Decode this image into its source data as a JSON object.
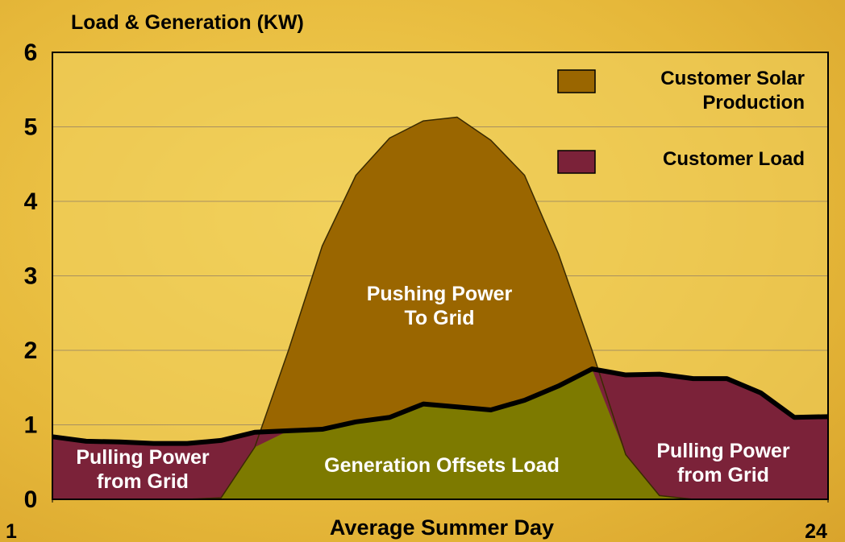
{
  "chart_data": {
    "type": "area",
    "title": "Load & Generation (KW)",
    "x_label": "Average Summer Day",
    "x": [
      1,
      2,
      3,
      4,
      5,
      6,
      7,
      8,
      9,
      10,
      11,
      12,
      13,
      14,
      15,
      16,
      17,
      18,
      19,
      20,
      21,
      22,
      23,
      24
    ],
    "series": [
      {
        "name": "Customer Solar Production",
        "color": "#9a6600",
        "values": [
          0,
          0,
          0,
          0,
          0,
          0.02,
          0.7,
          2.0,
          3.4,
          4.35,
          4.85,
          5.08,
          5.13,
          4.82,
          4.35,
          3.3,
          2.0,
          0.6,
          0.05,
          0,
          0,
          0,
          0,
          0
        ]
      },
      {
        "name": "Customer Load",
        "color": "#7b2239",
        "values": [
          0.84,
          0.78,
          0.77,
          0.75,
          0.75,
          0.79,
          0.9,
          0.92,
          0.94,
          1.04,
          1.1,
          1.28,
          1.24,
          1.2,
          1.33,
          1.52,
          1.75,
          1.67,
          1.68,
          1.62,
          1.62,
          1.43,
          1.1,
          1.11
        ]
      }
    ],
    "overlap_color": "#7d7a00",
    "xlim": [
      1,
      24
    ],
    "xticks": [
      1,
      24
    ],
    "ylim": [
      0,
      6
    ],
    "yticks": [
      0,
      1,
      2,
      3,
      4,
      5,
      6
    ],
    "grid": true,
    "annotations": [
      {
        "lines": [
          "Pushing Power",
          "To Grid"
        ]
      },
      {
        "lines": [
          "Pulling Power",
          "from Grid"
        ]
      },
      {
        "lines": [
          "Generation Offsets Load"
        ]
      },
      {
        "lines": [
          "Pulling Power",
          "from Grid"
        ]
      }
    ]
  }
}
